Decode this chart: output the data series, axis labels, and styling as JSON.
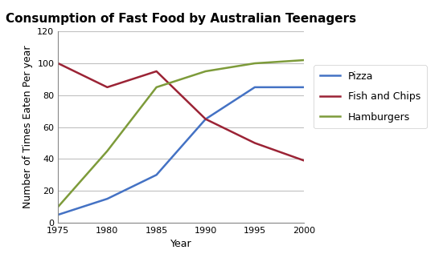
{
  "title": "Consumption of Fast Food by Australian Teenagers",
  "xlabel": "Year",
  "ylabel": "Number of Times Eaten Per year",
  "years": [
    1975,
    1980,
    1985,
    1990,
    1995,
    2000
  ],
  "pizza": [
    5,
    15,
    30,
    65,
    85,
    85
  ],
  "fish_and_chips": [
    100,
    85,
    95,
    65,
    50,
    39
  ],
  "hamburgers": [
    10,
    45,
    85,
    95,
    100,
    102
  ],
  "pizza_color": "#4472C4",
  "fish_color": "#9B2335",
  "hamburgers_color": "#7D9B3A",
  "ylim": [
    0,
    120
  ],
  "yticks": [
    0,
    20,
    40,
    60,
    80,
    100,
    120
  ],
  "xticks": [
    1975,
    1980,
    1985,
    1990,
    1995,
    2000
  ],
  "linewidth": 1.8,
  "legend_labels": [
    "Pizza",
    "Fish and Chips",
    "Hamburgers"
  ],
  "background_color": "#FFFFFF",
  "grid_color": "#C0C0C0",
  "title_fontsize": 11,
  "axis_label_fontsize": 9,
  "tick_fontsize": 8,
  "legend_fontsize": 9
}
